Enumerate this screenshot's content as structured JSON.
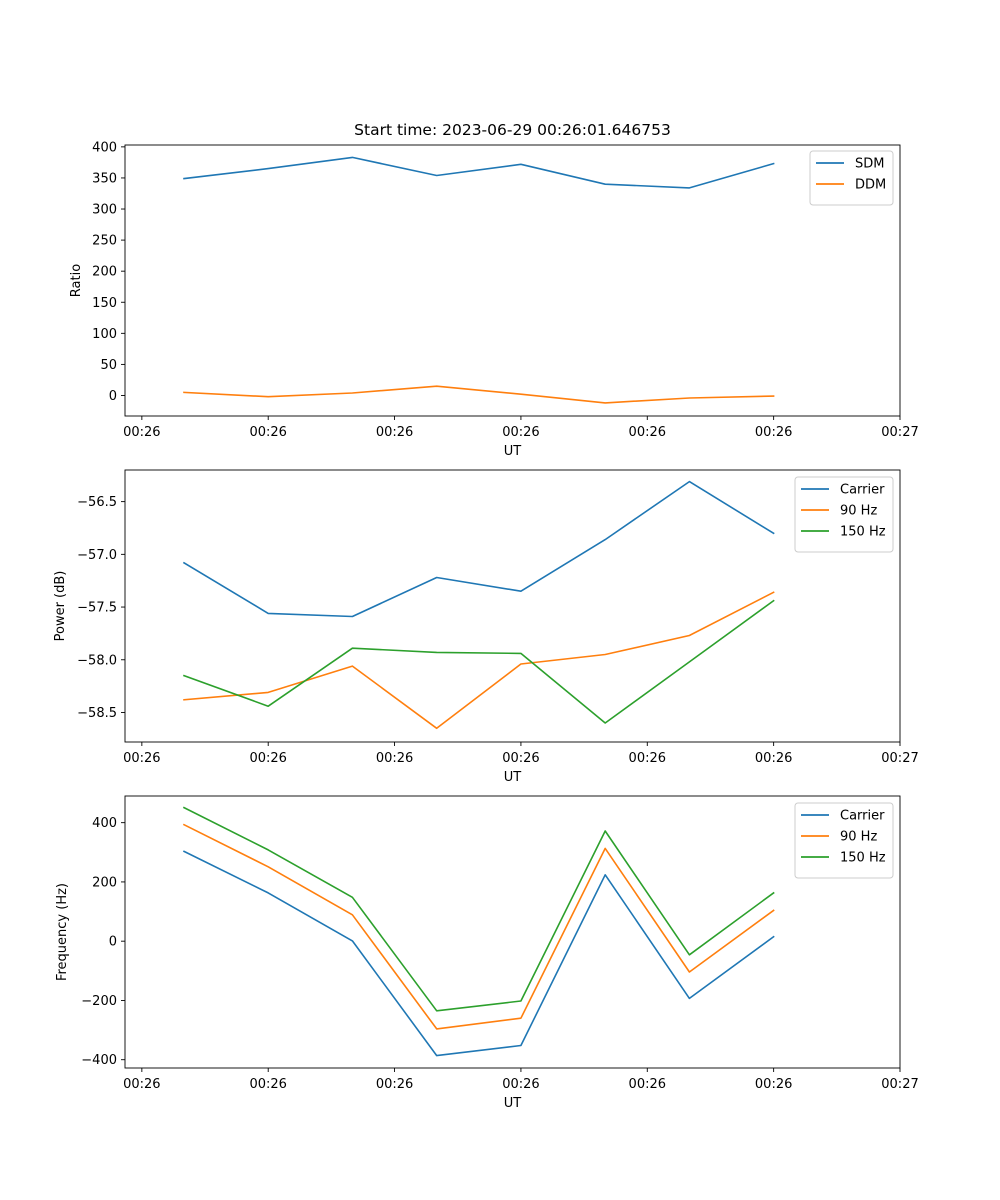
{
  "colors": {
    "c0": "#1f77b4",
    "c1": "#ff7f0e",
    "c2": "#2ca02c"
  },
  "chart_data": [
    {
      "type": "line",
      "title": "Start time: 2023-06-29 00:26:01.646753",
      "xlabel": "UT",
      "ylabel": "Ratio",
      "x": [
        0.5,
        1.5,
        2.5,
        3.5,
        4.5,
        5.5,
        6.5,
        7.5
      ],
      "xlim": [
        -0.2,
        9.0
      ],
      "xticks": [
        0,
        1.5,
        3.0,
        4.5,
        6.0,
        7.5,
        9.0
      ],
      "xtick_labels": [
        "00:26",
        "00:26",
        "00:26",
        "00:26",
        "00:26",
        "00:26",
        "00:27"
      ],
      "ylim": [
        -33,
        403
      ],
      "yticks": [
        0,
        50,
        100,
        150,
        200,
        250,
        300,
        350,
        400
      ],
      "ytick_labels": [
        "0",
        "50",
        "100",
        "150",
        "200",
        "250",
        "300",
        "350",
        "400"
      ],
      "legend": "upper right",
      "series": [
        {
          "name": "SDM",
          "color": "#1f77b4",
          "values": [
            349,
            365,
            383,
            354,
            372,
            340,
            334,
            373
          ]
        },
        {
          "name": "DDM",
          "color": "#ff7f0e",
          "values": [
            5,
            -2,
            4,
            15,
            2,
            -12,
            -4,
            -1
          ]
        }
      ]
    },
    {
      "type": "line",
      "title": "",
      "xlabel": "UT",
      "ylabel": "Power (dB)",
      "x": [
        0.5,
        1.5,
        2.5,
        3.5,
        4.5,
        5.5,
        6.5,
        7.5
      ],
      "xlim": [
        -0.2,
        9.0
      ],
      "xticks": [
        0,
        1.5,
        3.0,
        4.5,
        6.0,
        7.5,
        9.0
      ],
      "xtick_labels": [
        "00:26",
        "00:26",
        "00:26",
        "00:26",
        "00:26",
        "00:26",
        "00:27"
      ],
      "ylim": [
        -58.78,
        -56.2
      ],
      "yticks": [
        -58.5,
        -58.0,
        -57.5,
        -57.0,
        -56.5
      ],
      "ytick_labels": [
        "−58.5",
        "−58.0",
        "−57.5",
        "−57.0",
        "−56.5"
      ],
      "legend": "upper right",
      "series": [
        {
          "name": "Carrier",
          "color": "#1f77b4",
          "values": [
            -57.08,
            -57.56,
            -57.59,
            -57.22,
            -57.35,
            -56.86,
            -56.31,
            -56.8
          ]
        },
        {
          "name": "90 Hz",
          "color": "#ff7f0e",
          "values": [
            -58.38,
            -58.31,
            -58.06,
            -58.65,
            -58.04,
            -57.95,
            -57.77,
            -57.36
          ]
        },
        {
          "name": "150 Hz",
          "color": "#2ca02c",
          "values": [
            -58.15,
            -58.44,
            -57.89,
            -57.93,
            -57.94,
            -58.6,
            -58.02,
            -57.44
          ]
        }
      ]
    },
    {
      "type": "line",
      "title": "",
      "xlabel": "UT",
      "ylabel": "Frequency (Hz)",
      "x": [
        0.5,
        1.5,
        2.5,
        3.5,
        4.5,
        5.5,
        6.5,
        7.5
      ],
      "xlim": [
        -0.2,
        9.0
      ],
      "xticks": [
        0,
        1.5,
        3.0,
        4.5,
        6.0,
        7.5,
        9.0
      ],
      "xtick_labels": [
        "00:26",
        "00:26",
        "00:26",
        "00:26",
        "00:26",
        "00:26",
        "00:27"
      ],
      "ylim": [
        -428,
        490
      ],
      "yticks": [
        -400,
        -200,
        0,
        200,
        400
      ],
      "ytick_labels": [
        "−400",
        "−200",
        "0",
        "200",
        "400"
      ],
      "legend": "upper right",
      "series": [
        {
          "name": "Carrier",
          "color": "#1f77b4",
          "values": [
            303,
            163,
            1,
            -386,
            -352,
            224,
            -193,
            15
          ]
        },
        {
          "name": "90 Hz",
          "color": "#ff7f0e",
          "values": [
            393,
            251,
            89,
            -296,
            -260,
            313,
            -104,
            104
          ]
        },
        {
          "name": "150 Hz",
          "color": "#2ca02c",
          "values": [
            451,
            308,
            148,
            -235,
            -202,
            372,
            -46,
            163
          ]
        }
      ]
    }
  ]
}
